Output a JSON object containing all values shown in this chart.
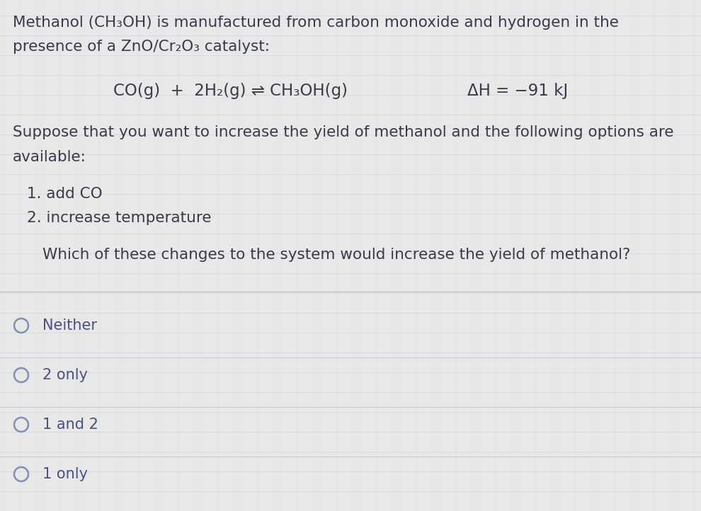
{
  "background_color": "#e8e8e8",
  "line_color": "#c8cdd8",
  "text_color": "#3a3a4a",
  "choice_text_color": "#4a5080",
  "title_line1": "Methanol (CH₃OH) is manufactured from carbon monoxide and hydrogen in the",
  "title_line2": "presence of a ZnO/Cr₂O₃ catalyst:",
  "equation_left": "CO(g)  +  2H₂(g) ⇌ CH₃OH(g)",
  "equation_right": "ΔH = −91 kJ",
  "suppose_line1": "Suppose that you want to increase the yield of methanol and the following options are",
  "suppose_line2": "available:",
  "option1": "1. add CO",
  "option2": "2. increase temperature",
  "question": "Which of these changes to the system would increase the yield of methanol?",
  "choices": [
    "Neither",
    "2 only",
    "1 and 2",
    "1 only"
  ],
  "font_size_body": 15.5,
  "font_size_eq": 16.5,
  "font_size_choices": 15.0,
  "divider_color": "#b0b4c0"
}
